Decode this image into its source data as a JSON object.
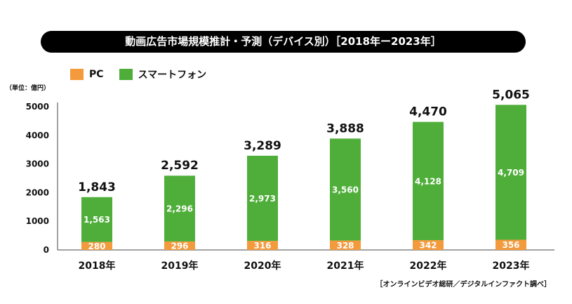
{
  "title": "動画広告市場規模推計・予測（デバイス別）［2018年ー2023年］",
  "unit_label": "（単位：億円）",
  "source": "［オンラインビデオ総研／デジタルインファクト調べ］",
  "colors": {
    "pc": "#f39a3c",
    "smartphone": "#4fae3a"
  },
  "chart_data": {
    "type": "bar",
    "stacked": true,
    "categories": [
      "2018年",
      "2019年",
      "2020年",
      "2021年",
      "2022年",
      "2023年"
    ],
    "series": [
      {
        "name": "PC",
        "values": [
          280,
          296,
          316,
          328,
          342,
          356
        ]
      },
      {
        "name": "スマートフォン",
        "values": [
          1563,
          2296,
          2973,
          3560,
          4128,
          4709
        ]
      }
    ],
    "totals": [
      1843,
      2592,
      3289,
      3888,
      4470,
      5065
    ],
    "total_labels": [
      "1,843",
      "2,592",
      "3,289",
      "3,888",
      "4,470",
      "5,065"
    ],
    "series_labels": [
      [
        "280",
        "296",
        "316",
        "328",
        "342",
        "356"
      ],
      [
        "1,563",
        "2,296",
        "2,973",
        "3,560",
        "4,128",
        "4,709"
      ]
    ],
    "ylim": [
      0,
      5000
    ],
    "yticks": [
      "0",
      "1000",
      "2000",
      "3000",
      "4000",
      "5000"
    ],
    "legend_position": "top-left",
    "grid": false
  }
}
